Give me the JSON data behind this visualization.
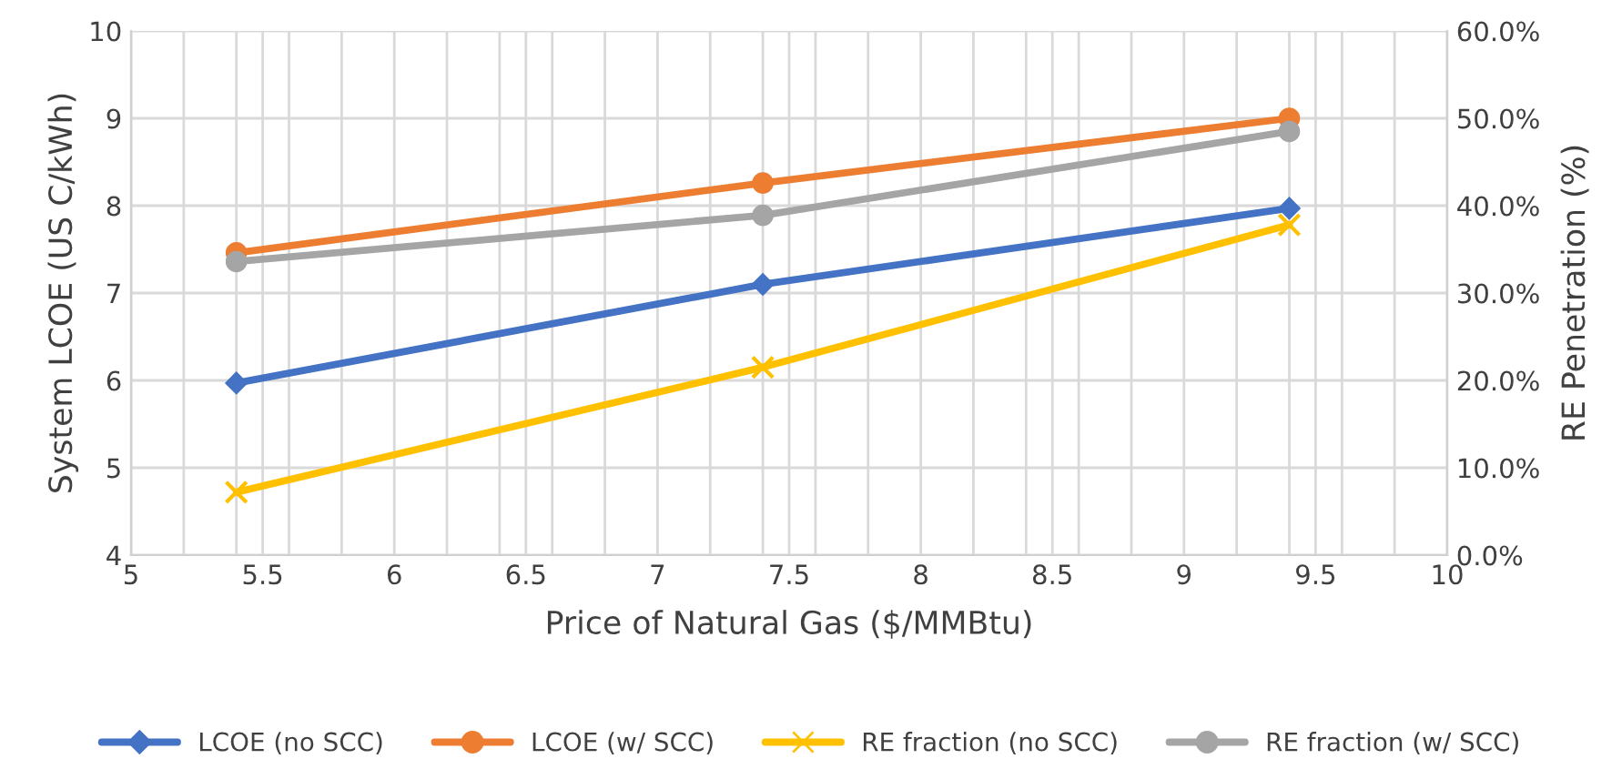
{
  "chart_data": {
    "type": "line",
    "xlabel": "Price of Natural Gas ($/MMBtu)",
    "ylabel": "System LCOE (US C/kWh)",
    "y2label": "RE Penetration (%)",
    "x": [
      5.4,
      7.4,
      9.4
    ],
    "series": [
      {
        "name": "LCOE (no SCC)",
        "color": "#4472c4",
        "marker": "diamond",
        "values": [
          5.97,
          7.1,
          7.97
        ]
      },
      {
        "name": "LCOE (w/ SCC)",
        "color": "#ed7d31",
        "marker": "circle",
        "values": [
          7.46,
          8.26,
          9.0
        ]
      },
      {
        "name": "RE fraction (no SCC)",
        "color": "#ffc000",
        "marker": "cross",
        "axis": "y2",
        "values": [
          7.2,
          21.5,
          37.8
        ]
      },
      {
        "name": "RE fraction (w/ SCC)",
        "color": "#a5a5a5",
        "marker": "circle",
        "axis": "y2",
        "values": [
          33.6,
          38.9,
          48.5
        ]
      }
    ],
    "xlim": [
      5,
      10
    ],
    "xticks": [
      5,
      {
        "value": 5.2,
        "label": null
      },
      {
        "value": 5.4,
        "label": null
      },
      5.5,
      {
        "value": 5.6,
        "label": null
      },
      {
        "value": 5.8,
        "label": null
      },
      6,
      {
        "value": 6.2,
        "label": null
      },
      {
        "value": 6.4,
        "label": null
      },
      6.5,
      {
        "value": 6.6,
        "label": null
      },
      {
        "value": 6.8,
        "label": null
      },
      7,
      {
        "value": 7.2,
        "label": null
      },
      {
        "value": 7.4,
        "label": null
      },
      7.5,
      {
        "value": 7.6,
        "label": null
      },
      {
        "value": 7.8,
        "label": null
      },
      8,
      {
        "value": 8.2,
        "label": null
      },
      {
        "value": 8.4,
        "label": null
      },
      8.5,
      {
        "value": 8.6,
        "label": null
      },
      {
        "value": 8.8,
        "label": null
      },
      9,
      {
        "value": 9.2,
        "label": null
      },
      {
        "value": 9.4,
        "label": null
      },
      9.5,
      {
        "value": 9.6,
        "label": null
      },
      {
        "value": 9.8,
        "label": null
      },
      10
    ],
    "ylim": [
      4,
      10
    ],
    "yticks": [
      4,
      5,
      6,
      7,
      8,
      9,
      10
    ],
    "y2lim": [
      0,
      60
    ],
    "y2ticks": [
      {
        "value": 0,
        "label": "0.0%"
      },
      {
        "value": 10,
        "label": "10.0%"
      },
      {
        "value": 20,
        "label": "20.0%"
      },
      {
        "value": 30,
        "label": "30.0%"
      },
      {
        "value": 40,
        "label": "40.0%"
      },
      {
        "value": 50,
        "label": "50.0%"
      },
      {
        "value": 60,
        "label": "60.0%"
      }
    ],
    "grid": true,
    "legend": "bottom"
  }
}
